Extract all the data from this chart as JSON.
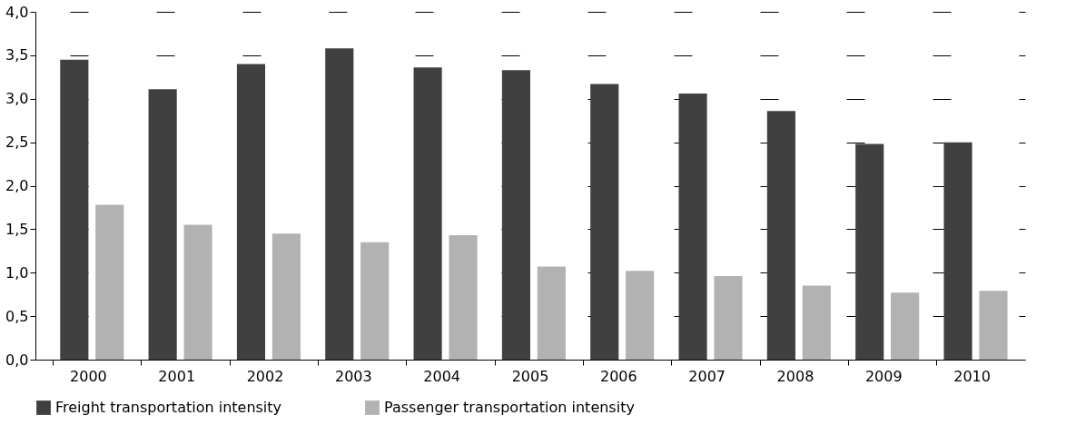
{
  "chart_data": {
    "type": "bar",
    "categories": [
      "2000",
      "2001",
      "2002",
      "2003",
      "2004",
      "2005",
      "2006",
      "2007",
      "2008",
      "2009",
      "2010"
    ],
    "series": [
      {
        "name": "Freight transportation intensity",
        "color": "#404040",
        "values": [
          3.45,
          3.11,
          3.4,
          3.58,
          3.36,
          3.33,
          3.17,
          3.06,
          2.86,
          2.48,
          2.5
        ]
      },
      {
        "name": "Passenger transportation intensity",
        "color": "#b2b2b2",
        "values": [
          1.78,
          1.55,
          1.45,
          1.35,
          1.43,
          1.07,
          1.02,
          0.96,
          0.85,
          0.77,
          0.79
        ]
      }
    ],
    "ylim": [
      0,
      4
    ],
    "yticks": [
      {
        "value": 0,
        "label": "0,0"
      },
      {
        "value": 0.5,
        "label": "0,5"
      },
      {
        "value": 1,
        "label": "1,0"
      },
      {
        "value": 1.5,
        "label": "1,5"
      },
      {
        "value": 2,
        "label": "2,0"
      },
      {
        "value": 2.5,
        "label": "2,5"
      },
      {
        "value": 3,
        "label": "3,0"
      },
      {
        "value": 3.5,
        "label": "3,5"
      },
      {
        "value": 4,
        "label": "4,0"
      }
    ],
    "grid": "y",
    "legend": "bottom"
  }
}
